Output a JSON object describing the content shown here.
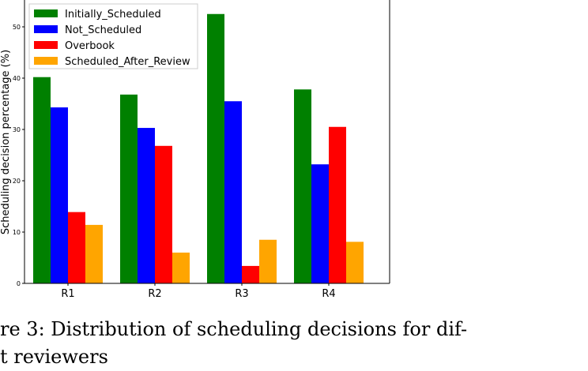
{
  "chart_data": {
    "type": "bar",
    "title": "",
    "xlabel": "",
    "ylabel": "Scheduling decision percentage (%)",
    "categories": [
      "R1",
      "R2",
      "R3",
      "R4"
    ],
    "ylim": [
      0,
      55
    ],
    "yticks": [
      0,
      10,
      20,
      30,
      40,
      50
    ],
    "legend_position": "top-left",
    "grid": false,
    "series": [
      {
        "name": "Initially_Scheduled",
        "color": "#008000",
        "values": [
          40.2,
          36.8,
          52.5,
          37.8
        ]
      },
      {
        "name": "Not_Scheduled",
        "color": "#0000ff",
        "values": [
          34.3,
          30.3,
          35.5,
          23.2
        ]
      },
      {
        "name": "Overbook",
        "color": "#ff0000",
        "values": [
          13.9,
          26.8,
          3.4,
          30.5
        ]
      },
      {
        "name": "Scheduled_After_Review",
        "color": "#ffa500",
        "values": [
          11.4,
          6.0,
          8.5,
          8.1
        ]
      }
    ]
  },
  "caption": {
    "line1": "re 3:  Distribution of scheduling decisions for dif-",
    "line2": "t reviewers"
  }
}
